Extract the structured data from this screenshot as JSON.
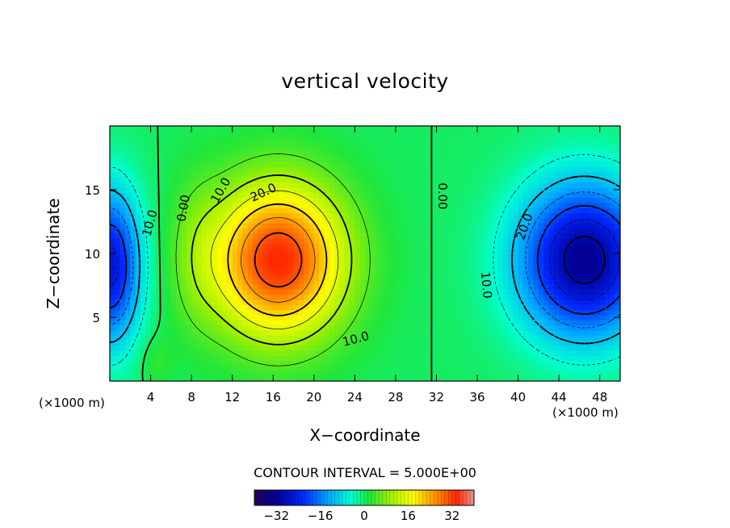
{
  "chart_data": {
    "type": "heatmap",
    "title": "vertical velocity",
    "xlabel": "X−coordinate",
    "ylabel": "Z−coordinate",
    "x_unit_label_left": "(×1000 m)",
    "x_unit_label_right": "(×1000 m)",
    "xlim": [
      0,
      50
    ],
    "ylim": [
      0,
      20
    ],
    "x_ticks": [
      4,
      8,
      12,
      16,
      20,
      24,
      28,
      32,
      36,
      40,
      44,
      48
    ],
    "y_ticks": [
      5,
      10,
      15
    ],
    "contour_interval_text": "CONTOUR INTERVAL = 5.000E+00",
    "contour_labels": [
      {
        "text": "0.00",
        "x": 7.6,
        "z": 13.5,
        "angle": -80
      },
      {
        "text": "10.0",
        "x": 11.2,
        "z": 14.8,
        "angle": -60
      },
      {
        "text": "20.0",
        "x": 15.2,
        "z": 14.5,
        "angle": -25
      },
      {
        "text": "10.0",
        "x": 24.2,
        "z": 3.0,
        "angle": -15
      },
      {
        "text": "0.00",
        "x": 32.2,
        "z": 14.5,
        "angle": 90
      },
      {
        "text": "10.0",
        "x": 4.3,
        "z": 12.3,
        "angle": -75
      },
      {
        "text": "20.0",
        "x": 41.0,
        "z": 12.0,
        "angle": -70
      },
      {
        "text": "10.0",
        "x": 36.5,
        "z": 7.5,
        "angle": 85
      }
    ],
    "field_extrema": [
      {
        "name": "updraft-max",
        "x": 16.0,
        "z": 8.8,
        "value": 32
      },
      {
        "name": "downdraft-min-right",
        "x": 46.3,
        "z": 9.2,
        "value": -31
      },
      {
        "name": "downdraft-min-left",
        "x": 0.5,
        "z": 9.0,
        "value": -25
      }
    ],
    "colorbar": {
      "min": -40,
      "max": 40,
      "ticks": [
        "−32",
        "−16",
        "0",
        "16",
        "32"
      ],
      "tick_values": [
        -32,
        -16,
        0,
        16,
        32
      ]
    },
    "grid": false
  }
}
